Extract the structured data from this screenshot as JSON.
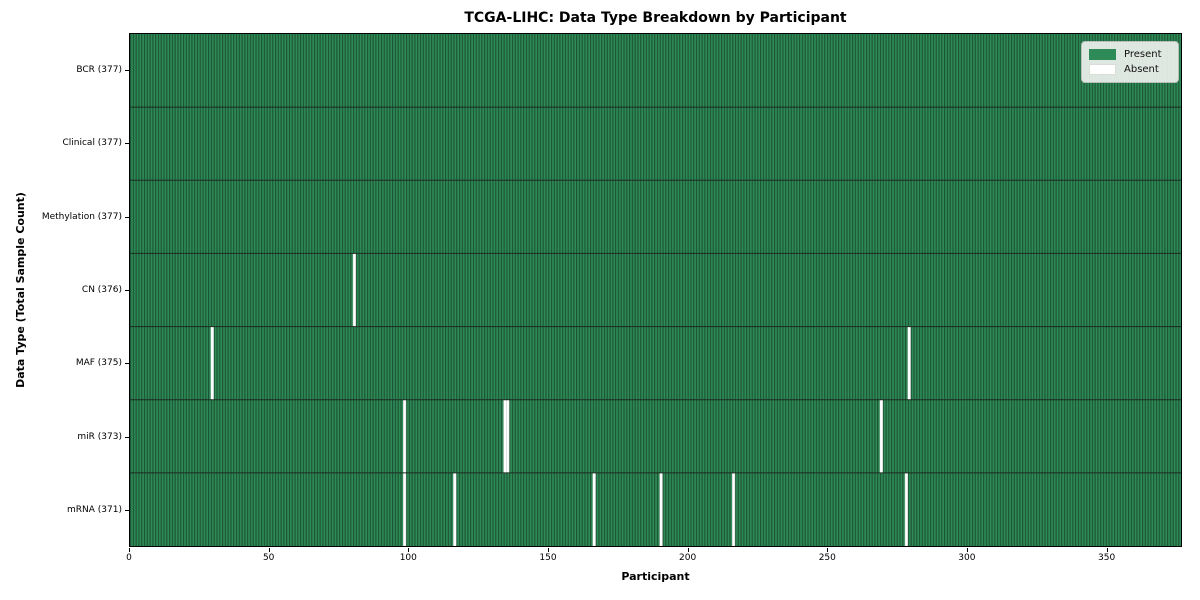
{
  "figure": {
    "title": "TCGA-LIHC: Data Type Breakdown by Participant"
  },
  "chart_data": {
    "type": "heatmap",
    "title": "TCGA-LIHC: Data Type Breakdown by Participant",
    "xlabel": "Participant",
    "ylabel": "Data Type (Total Sample Count)",
    "x_ticks": [
      0,
      50,
      100,
      150,
      200,
      250,
      300,
      350
    ],
    "xlim": [
      0,
      377
    ],
    "n_participants": 377,
    "grid": false,
    "legend_position": "upper right",
    "rows": [
      {
        "label": "BCR (377)",
        "name": "BCR",
        "total_samples": 377,
        "absent_participants": []
      },
      {
        "label": "Clinical (377)",
        "name": "Clinical",
        "total_samples": 377,
        "absent_participants": []
      },
      {
        "label": "Methylation (377)",
        "name": "Methylation",
        "total_samples": 377,
        "absent_participants": []
      },
      {
        "label": "CN (376)",
        "name": "CN",
        "total_samples": 376,
        "absent_participants": [
          80
        ]
      },
      {
        "label": "MAF (375)",
        "name": "MAF",
        "total_samples": 375,
        "absent_participants": [
          29,
          279
        ]
      },
      {
        "label": "miR (373)",
        "name": "miR",
        "total_samples": 373,
        "absent_participants": [
          98,
          134,
          135,
          269
        ]
      },
      {
        "label": "mRNA (371)",
        "name": "mRNA",
        "total_samples": 371,
        "absent_participants": [
          98,
          116,
          166,
          190,
          216,
          278
        ]
      }
    ],
    "legend": [
      {
        "label": "Present",
        "color": "#2e8b57"
      },
      {
        "label": "Absent",
        "color": "#ffffff"
      }
    ],
    "colors": {
      "present": "#2e8b57",
      "present_edge": "#1c5434",
      "absent": "#ffffff",
      "absent_edge": "#c4c4c4",
      "row_separator": "#1c2b21",
      "spine": "#000000",
      "text": "#000000",
      "legend_bg": "#eef1ee",
      "legend_border": "#b8beb8"
    }
  }
}
